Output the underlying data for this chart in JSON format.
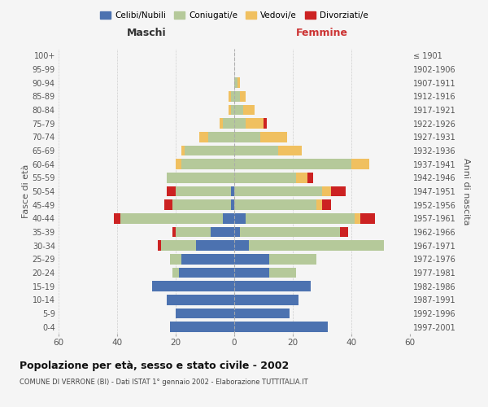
{
  "age_groups": [
    "0-4",
    "5-9",
    "10-14",
    "15-19",
    "20-24",
    "25-29",
    "30-34",
    "35-39",
    "40-44",
    "45-49",
    "50-54",
    "55-59",
    "60-64",
    "65-69",
    "70-74",
    "75-79",
    "80-84",
    "85-89",
    "90-94",
    "95-99",
    "100+"
  ],
  "birth_years": [
    "1997-2001",
    "1992-1996",
    "1987-1991",
    "1982-1986",
    "1977-1981",
    "1972-1976",
    "1967-1971",
    "1962-1966",
    "1957-1961",
    "1952-1956",
    "1947-1951",
    "1942-1946",
    "1937-1941",
    "1932-1936",
    "1927-1931",
    "1922-1926",
    "1917-1921",
    "1912-1916",
    "1907-1911",
    "1902-1906",
    "≤ 1901"
  ],
  "males": {
    "celibi": [
      22,
      20,
      23,
      28,
      19,
      18,
      13,
      8,
      4,
      1,
      1,
      0,
      0,
      0,
      0,
      0,
      0,
      0,
      0,
      0,
      0
    ],
    "coniugati": [
      0,
      0,
      0,
      0,
      2,
      4,
      12,
      12,
      35,
      20,
      19,
      23,
      18,
      17,
      9,
      4,
      1,
      1,
      0,
      0,
      0
    ],
    "vedovi": [
      0,
      0,
      0,
      0,
      0,
      0,
      0,
      0,
      0,
      0,
      0,
      0,
      2,
      1,
      3,
      1,
      1,
      1,
      0,
      0,
      0
    ],
    "divorziati": [
      0,
      0,
      0,
      0,
      0,
      0,
      1,
      1,
      2,
      3,
      3,
      0,
      0,
      0,
      0,
      0,
      0,
      0,
      0,
      0,
      0
    ]
  },
  "females": {
    "nubili": [
      32,
      19,
      22,
      26,
      12,
      12,
      5,
      2,
      4,
      0,
      0,
      0,
      0,
      0,
      0,
      0,
      0,
      0,
      0,
      0,
      0
    ],
    "coniugate": [
      0,
      0,
      0,
      0,
      9,
      16,
      46,
      34,
      37,
      28,
      30,
      21,
      40,
      15,
      9,
      4,
      3,
      2,
      1,
      0,
      0
    ],
    "vedove": [
      0,
      0,
      0,
      0,
      0,
      0,
      0,
      0,
      2,
      2,
      3,
      4,
      6,
      8,
      9,
      6,
      4,
      2,
      1,
      0,
      0
    ],
    "divorziate": [
      0,
      0,
      0,
      0,
      0,
      0,
      0,
      3,
      5,
      3,
      5,
      2,
      0,
      0,
      0,
      1,
      0,
      0,
      0,
      0,
      0
    ]
  },
  "colors": {
    "celibi_nubili": "#4c72b0",
    "coniugati": "#b5c99a",
    "vedovi": "#f0c060",
    "divorziati": "#cc2222"
  },
  "xlim": 60,
  "title": "Popolazione per età, sesso e stato civile - 2002",
  "subtitle": "COMUNE DI VERRONE (BI) - Dati ISTAT 1° gennaio 2002 - Elaborazione TUTTITALIA.IT",
  "ylabel_left": "Fasce di età",
  "ylabel_right": "Anni di nascita",
  "xlabel_left": "Maschi",
  "xlabel_right": "Femmine",
  "background_color": "#f5f5f5",
  "legend_labels": [
    "Celibi/Nubili",
    "Coniugati/e",
    "Vedovi/e",
    "Divorziati/e"
  ]
}
